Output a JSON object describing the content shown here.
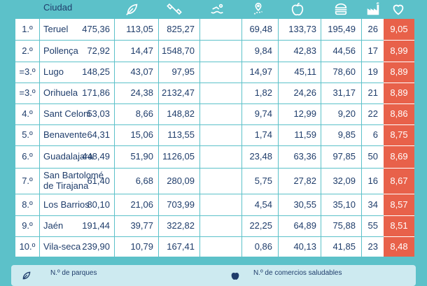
{
  "header": {
    "city_label": "Ciudad",
    "icons": [
      "leaf-icon",
      "dumbbell-icon",
      "swimmer-icon",
      "route-pin-icon",
      "apple-icon",
      "burger-icon",
      "factory-icon",
      "heart-icon"
    ]
  },
  "colors": {
    "teal": "#5cc1c9",
    "navy": "#1f3d6b",
    "score_red": "#e8614a"
  },
  "rows": [
    {
      "rank": "1.º",
      "city": "Teruel",
      "v1": "475,36",
      "v2": "113,05",
      "v3": "825,27",
      "v4": "69,48",
      "v5": "133,73",
      "v6": "195,49",
      "v7": "26",
      "score": "9,05"
    },
    {
      "rank": "2.º",
      "city": "Pollença",
      "v1": "72,92",
      "v2": "14,47",
      "v3": "1548,70",
      "v4": "9,84",
      "v5": "42,83",
      "v6": "44,56",
      "v7": "17",
      "score": "8,99"
    },
    {
      "rank": "=3.º",
      "city": "Lugo",
      "v1": "148,25",
      "v2": "43,07",
      "v3": "97,95",
      "v4": "14,97",
      "v5": "45,11",
      "v6": "78,60",
      "v7": "19",
      "score": "8,89"
    },
    {
      "rank": "=3.º",
      "city": "Orihuela",
      "v1": "171,86",
      "v2": "24,38",
      "v3": "2132,47",
      "v4": "1,82",
      "v5": "24,26",
      "v6": "31,17",
      "v7": "21",
      "score": "8,89"
    },
    {
      "rank": "4.º",
      "city": "Sant Celoni",
      "v1": "53,03",
      "v2": "8,66",
      "v3": "148,82",
      "v4": "9,74",
      "v5": "12,99",
      "v6": "9,20",
      "v7": "22",
      "score": "8,86"
    },
    {
      "rank": "5.º",
      "city": "Benavente",
      "v1": "64,31",
      "v2": "15,06",
      "v3": "113,55",
      "v4": "1,74",
      "v5": "11,59",
      "v6": "9,85",
      "v7": "6",
      "score": "8,75"
    },
    {
      "rank": "6.º",
      "city": "Guadalajara",
      "v1": "448,49",
      "v2": "51,90",
      "v3": "1126,05",
      "v4": "23,48",
      "v5": "63,36",
      "v6": "97,85",
      "v7": "50",
      "score": "8,69"
    },
    {
      "rank": "7.º",
      "city_line1": "San Bartolomé",
      "city_line2": "de Tirajana",
      "v1": "61,40",
      "v2": "6,68",
      "v3": "280,09",
      "v4": "5,75",
      "v5": "27,82",
      "v6": "32,09",
      "v7": "16",
      "score": "8,67"
    },
    {
      "rank": "8.º",
      "city": "Los Barrios",
      "v1": "80,10",
      "v2": "21,06",
      "v3": "703,99",
      "v4": "4,54",
      "v5": "30,55",
      "v6": "35,10",
      "v7": "34",
      "score": "8,57"
    },
    {
      "rank": "9.º",
      "city": "Jaén",
      "v1": "191,44",
      "v2": "39,77",
      "v3": "322,82",
      "v4": "22,25",
      "v5": "64,89",
      "v6": "75,88",
      "v7": "55",
      "score": "8,51"
    },
    {
      "rank": "10.º",
      "city": "Vila-seca",
      "v1": "239,90",
      "v2": "10,79",
      "v3": "167,41",
      "v4": "0,86",
      "v5": "40,13",
      "v6": "41,85",
      "v7": "23",
      "score": "8,48"
    }
  ],
  "legend": {
    "item1": "N.º de parques",
    "item2": "N.º de comercios saludables"
  }
}
